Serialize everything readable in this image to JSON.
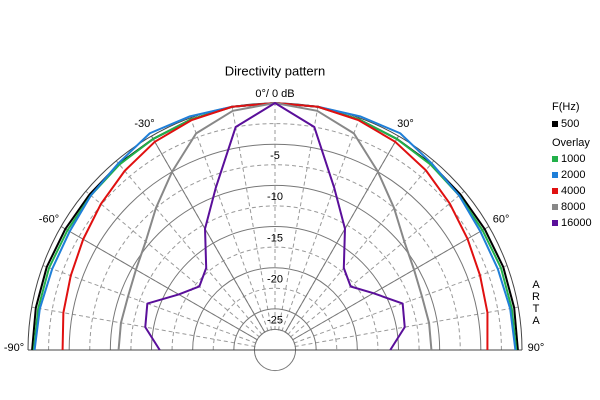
{
  "chart_data": {
    "type": "polar",
    "title": "Directivity pattern",
    "zero_label": "0°/ 0 dB",
    "legend_title": "F(Hz)",
    "overlay_title": "Overlay",
    "side_text": "ARTA",
    "theta": [
      -90,
      -80,
      -70,
      -60,
      -50,
      -40,
      -30,
      -20,
      -10,
      0,
      10,
      20,
      30,
      40,
      50,
      60,
      70,
      80,
      90
    ],
    "rlim": [
      -30,
      0
    ],
    "rticks": [
      -5,
      -10,
      -15,
      -20,
      -25
    ],
    "rminorticks": [
      -27.5,
      -22.5,
      -17.5,
      -12.5,
      -7.5,
      -2.5
    ],
    "thetaticks": [
      {
        "value": -90,
        "label": "-90°"
      },
      {
        "value": -60,
        "label": "-60°"
      },
      {
        "value": -30,
        "label": "-30°"
      },
      {
        "value": 30,
        "label": "30°"
      },
      {
        "value": 60,
        "label": "60°"
      },
      {
        "value": 90,
        "label": "90°"
      }
    ],
    "series": [
      {
        "name": "500",
        "color": "#000000",
        "values": [
          -0.5,
          -0.5,
          -0.5,
          -0.6,
          -0.6,
          -0.5,
          -0.4,
          -0.2,
          0,
          0,
          0,
          -0.2,
          -0.4,
          -0.5,
          -0.6,
          -0.6,
          -0.5,
          -0.5,
          -0.5
        ]
      },
      {
        "name": "1000",
        "color": "#22b04a",
        "values": [
          -0.7,
          -0.8,
          -0.8,
          -0.9,
          -0.8,
          -0.6,
          -0.4,
          -0.2,
          0,
          0,
          0,
          -0.2,
          -0.4,
          -0.6,
          -0.8,
          -0.9,
          -0.8,
          -0.8,
          -0.7
        ]
      },
      {
        "name": "2000",
        "color": "#1f7fd8",
        "values": [
          -0.8,
          -1.0,
          -1.2,
          -1.2,
          -0.8,
          -0.4,
          0.4,
          0.2,
          0,
          0,
          0,
          0.2,
          0.4,
          -0.4,
          -0.8,
          -1.2,
          -1.2,
          -1.0,
          -0.8
        ]
      },
      {
        "name": "4000",
        "color": "#e01010",
        "values": [
          -4.2,
          -3.9,
          -3.6,
          -3.1,
          -2.4,
          -1.6,
          -0.8,
          -0.3,
          0,
          0,
          0,
          -0.3,
          -0.8,
          -1.5,
          -2.3,
          -3.0,
          -3.5,
          -3.8,
          -4.2
        ]
      },
      {
        "name": "8000",
        "color": "#888888",
        "values": [
          -11,
          -11,
          -11,
          -10.5,
          -9.5,
          -7.5,
          -5,
          -2,
          -0.5,
          0,
          -0.5,
          -2,
          -5,
          -7.5,
          -9.5,
          -10.5,
          -11,
          -11,
          -11
        ]
      },
      {
        "name": "16000",
        "color": "#5a0f9a",
        "values": [
          -16,
          -14,
          -13.5,
          -16.5,
          -18,
          -17,
          -13,
          -9,
          -2.5,
          0,
          -2.5,
          -9,
          -13,
          -17,
          -18,
          -16.2,
          -13.5,
          -14,
          -16
        ]
      }
    ]
  }
}
